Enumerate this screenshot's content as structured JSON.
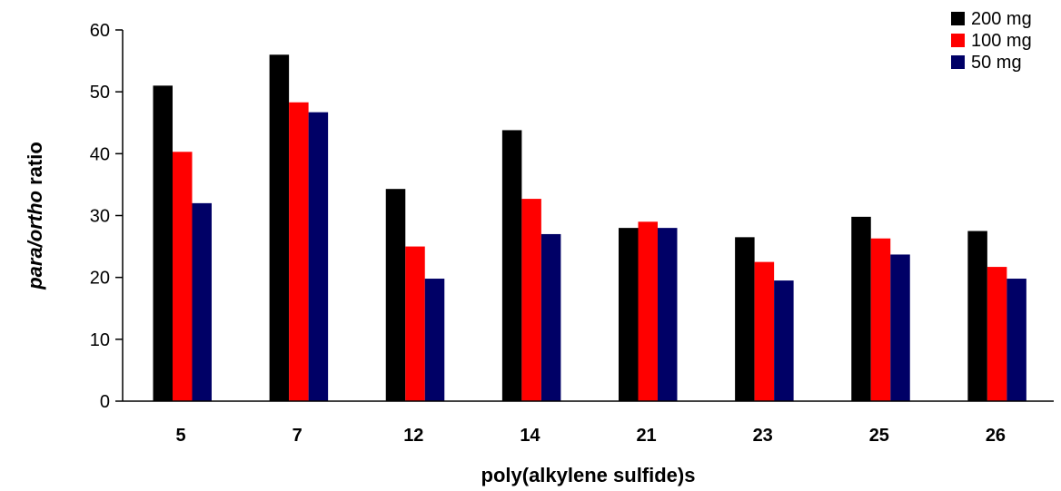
{
  "chart_data": {
    "type": "bar",
    "title": "",
    "xlabel": "poly(alkylene sulfide)s",
    "ylabel_parts": [
      "para/ortho",
      " ratio"
    ],
    "categories": [
      "5",
      "7",
      "12",
      "14",
      "21",
      "23",
      "25",
      "26"
    ],
    "ylim": [
      0,
      60
    ],
    "yticks": [
      0,
      10,
      20,
      30,
      40,
      50,
      60
    ],
    "grid": false,
    "legend_position": "top-right",
    "series": [
      {
        "name": "200 mg",
        "color": "#000000",
        "values": [
          51,
          56,
          34.3,
          43.8,
          28,
          26.5,
          29.8,
          27.5
        ]
      },
      {
        "name": "100 mg",
        "color": "#ff0000",
        "values": [
          40.3,
          48.3,
          25,
          32.7,
          29,
          22.5,
          26.3,
          21.7
        ]
      },
      {
        "name": "50 mg",
        "color": "#000066",
        "values": [
          32,
          46.7,
          19.8,
          27,
          28,
          19.5,
          23.7,
          19.8
        ]
      }
    ]
  }
}
